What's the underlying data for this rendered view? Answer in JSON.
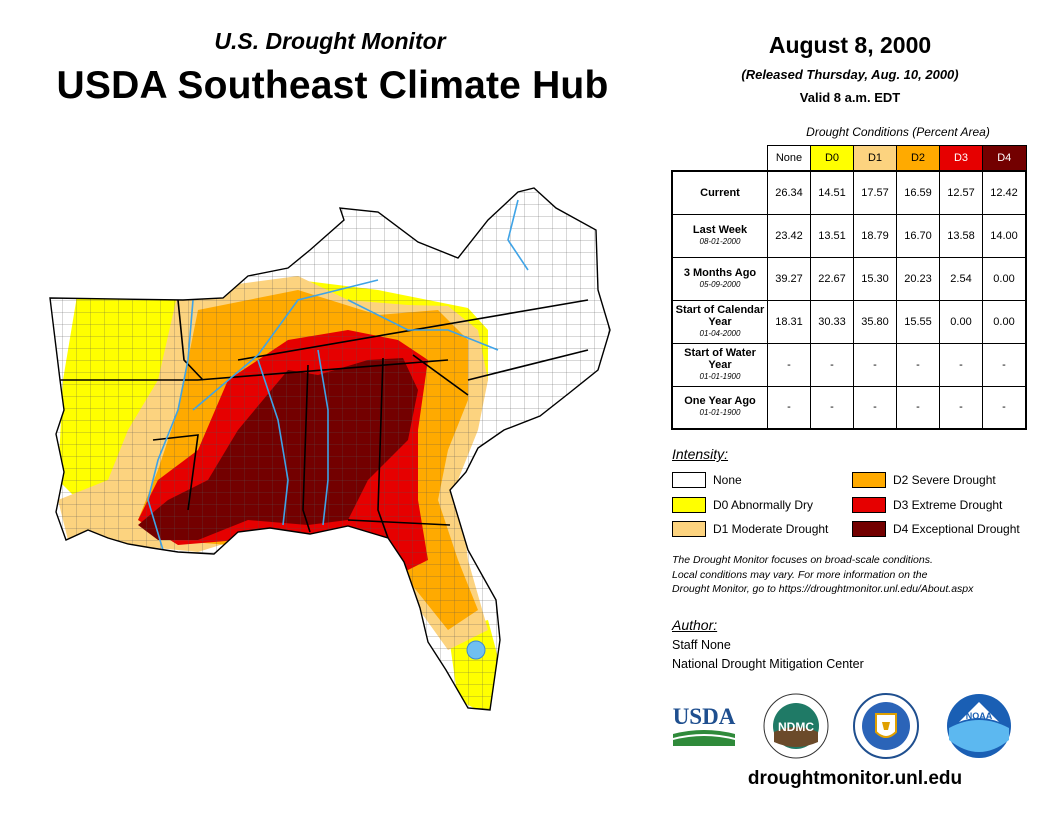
{
  "header": {
    "subtitle": "U.S. Drought Monitor",
    "title": "USDA Southeast Climate Hub",
    "date": "August 8, 2000",
    "released": "(Released Thursday, Aug. 10, 2000)",
    "valid": "Valid 8 a.m. EDT"
  },
  "table": {
    "caption": "Drought Conditions (Percent Area)",
    "columns": [
      "None",
      "D0",
      "D1",
      "D2",
      "D3",
      "D4"
    ],
    "column_colors": [
      "#ffffff",
      "#ffff00",
      "#fcd37f",
      "#ffaa00",
      "#e60000",
      "#730000"
    ],
    "rows": [
      {
        "label": "Current",
        "date": "",
        "values": [
          "26.34",
          "14.51",
          "17.57",
          "16.59",
          "12.57",
          "12.42"
        ]
      },
      {
        "label": "Last Week",
        "date": "08-01-2000",
        "values": [
          "23.42",
          "13.51",
          "18.79",
          "16.70",
          "13.58",
          "14.00"
        ]
      },
      {
        "label": "3 Months Ago",
        "date": "05-09-2000",
        "values": [
          "39.27",
          "22.67",
          "15.30",
          "20.23",
          "2.54",
          "0.00"
        ]
      },
      {
        "label": "Start of Calendar Year",
        "date": "01-04-2000",
        "values": [
          "18.31",
          "30.33",
          "35.80",
          "15.55",
          "0.00",
          "0.00"
        ]
      },
      {
        "label": "Start of Water Year",
        "date": "01-01-1900",
        "values": [
          "-",
          "-",
          "-",
          "-",
          "-",
          "-"
        ]
      },
      {
        "label": "One Year Ago",
        "date": "01-01-1900",
        "values": [
          "-",
          "-",
          "-",
          "-",
          "-",
          "-"
        ]
      }
    ]
  },
  "legend": {
    "title": "Intensity:",
    "items": [
      {
        "label": "None",
        "color": "#ffffff"
      },
      {
        "label": "D0 Abnormally Dry",
        "color": "#ffff00"
      },
      {
        "label": "D1 Moderate Drought",
        "color": "#fcd37f"
      },
      {
        "label": "D2 Severe Drought",
        "color": "#ffaa00"
      },
      {
        "label": "D3 Extreme Drought",
        "color": "#e60000"
      },
      {
        "label": "D4 Exceptional Drought",
        "color": "#730000"
      }
    ]
  },
  "note": {
    "line1": "The Drought Monitor focuses on broad-scale conditions.",
    "line2": "Local conditions may vary. For more information on the",
    "line3": "Drought Monitor, go to https://droughtmonitor.unl.edu/About.aspx"
  },
  "author": {
    "title": "Author:",
    "name": "Staff None",
    "org": "National Drought Mitigation Center"
  },
  "logos": {
    "usda": "USDA",
    "ndmc": "NDMC",
    "noaa": "NOAA"
  },
  "footer": {
    "url": "droughtmonitor.unl.edu"
  }
}
